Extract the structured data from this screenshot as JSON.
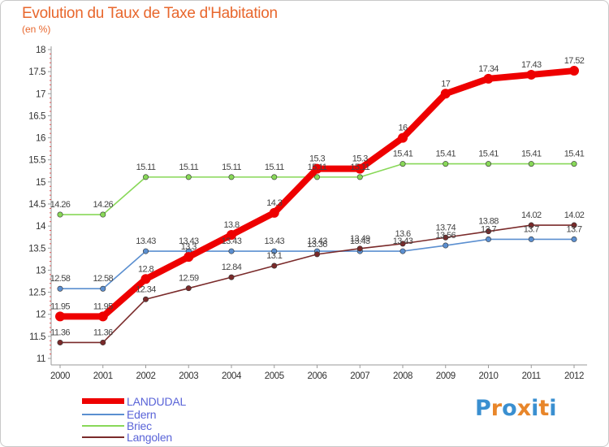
{
  "chart_data": {
    "type": "line",
    "title": "Evolution du Taux de Taxe d'Habitation",
    "ylabel": "(en %)",
    "xlabel": "",
    "x": [
      "2000",
      "2001",
      "2002",
      "2003",
      "2004",
      "2005",
      "2006",
      "2007",
      "2008",
      "2009",
      "2010",
      "2011",
      "2012"
    ],
    "ylim": [
      11,
      18
    ],
    "yticks": [
      "11",
      "11.5",
      "12",
      "12.5",
      "13",
      "13.5",
      "14",
      "14.5",
      "15",
      "15.5",
      "16",
      "16.5",
      "17",
      "17.5",
      "18"
    ],
    "grid": false,
    "legend_position": "bottom-left",
    "series": [
      {
        "name": "LANDUDAL",
        "color": "#ee0000",
        "values": [
          11.95,
          11.95,
          12.8,
          13.3,
          13.8,
          14.3,
          15.3,
          15.3,
          16,
          17,
          17.34,
          17.43,
          17.52
        ],
        "labels": [
          "11.95",
          "11.95",
          "12.8",
          "13.3",
          "13.8",
          "14.3",
          "15.3",
          "15.3",
          "16",
          "17",
          "17.34",
          "17.43",
          "17.52"
        ]
      },
      {
        "name": "Edern",
        "color": "#5b8fd0",
        "values": [
          12.58,
          12.58,
          13.43,
          13.43,
          13.43,
          13.43,
          13.43,
          13.43,
          13.43,
          13.56,
          13.7,
          13.7,
          13.7
        ],
        "labels": [
          "12.58",
          "12.58",
          "13.43",
          "13.43",
          "13.43",
          "13.43",
          "13.43",
          "13.43",
          "13.43",
          "13.56",
          "13.7",
          "13.7",
          "13.7"
        ]
      },
      {
        "name": "Briec",
        "color": "#88d858",
        "values": [
          14.26,
          14.26,
          15.11,
          15.11,
          15.11,
          15.11,
          15.11,
          15.11,
          15.41,
          15.41,
          15.41,
          15.41,
          15.41
        ],
        "labels": [
          "14.26",
          "14.26",
          "15.11",
          "15.11",
          "15.11",
          "15.11",
          "15.11",
          "15.11",
          "15.41",
          "15.41",
          "15.41",
          "15.41",
          "15.41"
        ]
      },
      {
        "name": "Langolen",
        "color": "#7a2a2a",
        "values": [
          11.36,
          11.36,
          12.34,
          12.59,
          12.84,
          13.1,
          13.36,
          13.49,
          13.6,
          13.74,
          13.88,
          14.02,
          14.02
        ],
        "labels": [
          "11.36",
          "11.36",
          "12.34",
          "12.59",
          "12.84",
          "13.1",
          "13.36",
          "13.49",
          "13.6",
          "13.74",
          "13.88",
          "14.02",
          "14.02"
        ]
      }
    ]
  },
  "logo": {
    "text": "Proxiti"
  }
}
